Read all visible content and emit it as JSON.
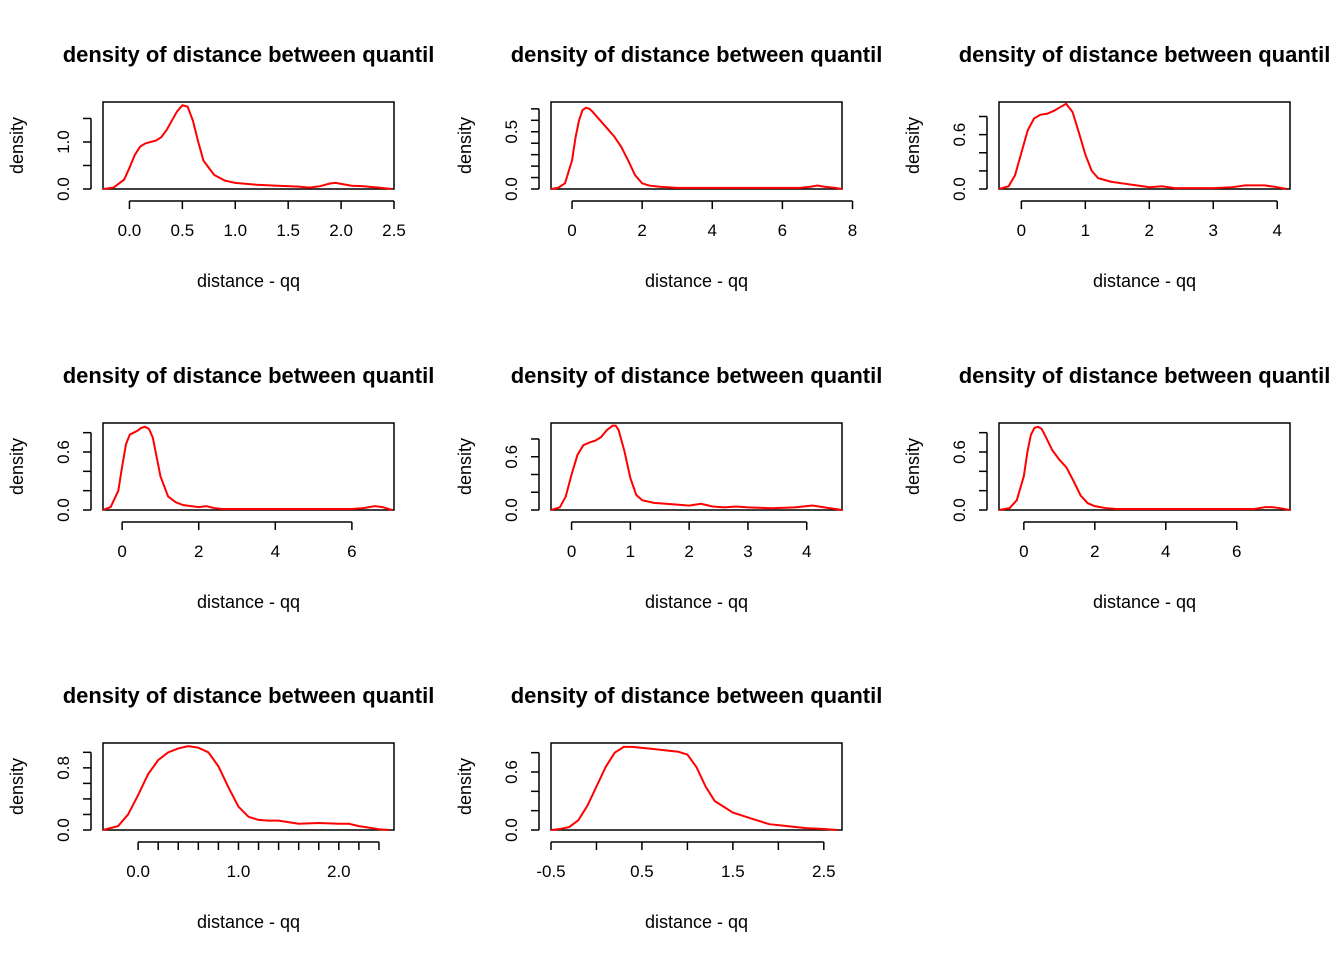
{
  "chart_data": [
    {
      "type": "line",
      "title": "density of distance between quantil",
      "xlabel": "distance - qq",
      "ylabel": "density",
      "xlim": [
        -0.25,
        2.5
      ],
      "ylim": [
        0,
        1.85
      ],
      "xticks": [
        0.0,
        0.5,
        1.0,
        1.5,
        2.0,
        2.5
      ],
      "xtick_labels": [
        "0.0",
        "0.5",
        "1.0",
        "1.5",
        "2.0",
        "2.5"
      ],
      "yticks": [
        0,
        0.5,
        1.0,
        1.5
      ],
      "ytick_labels": [
        "0.0",
        "",
        "1.0",
        ""
      ],
      "grid": false,
      "series": [
        {
          "color": "#ff0000",
          "x": [
            -0.25,
            -0.15,
            -0.05,
            0.0,
            0.05,
            0.1,
            0.15,
            0.2,
            0.25,
            0.3,
            0.35,
            0.4,
            0.45,
            0.5,
            0.55,
            0.6,
            0.65,
            0.7,
            0.8,
            0.9,
            1.0,
            1.2,
            1.4,
            1.6,
            1.7,
            1.8,
            1.9,
            1.95,
            2.0,
            2.1,
            2.2,
            2.3,
            2.4,
            2.48
          ],
          "y": [
            0.0,
            0.03,
            0.2,
            0.45,
            0.72,
            0.9,
            0.97,
            1.0,
            1.03,
            1.1,
            1.25,
            1.45,
            1.65,
            1.78,
            1.75,
            1.45,
            1.0,
            0.6,
            0.3,
            0.18,
            0.13,
            0.09,
            0.07,
            0.05,
            0.03,
            0.06,
            0.12,
            0.13,
            0.11,
            0.07,
            0.06,
            0.04,
            0.02,
            0.0
          ]
        }
      ]
    },
    {
      "type": "line",
      "title": "density of distance between quantil",
      "xlabel": "distance - qq",
      "ylabel": "density",
      "xlim": [
        -0.6,
        7.7
      ],
      "ylim": [
        0,
        0.76
      ],
      "xticks": [
        0,
        2,
        4,
        6,
        8
      ],
      "xtick_labels": [
        "0",
        "2",
        "4",
        "6",
        "8"
      ],
      "yticks": [
        0,
        0.1,
        0.2,
        0.3,
        0.4,
        0.5,
        0.6,
        0.7
      ],
      "ytick_labels": [
        "0.0",
        "",
        "",
        "",
        "",
        "0.5",
        "",
        ""
      ],
      "grid": false,
      "series": [
        {
          "color": "#ff0000",
          "x": [
            -0.6,
            -0.4,
            -0.2,
            0.0,
            0.1,
            0.2,
            0.3,
            0.4,
            0.5,
            0.6,
            0.8,
            1.0,
            1.2,
            1.4,
            1.6,
            1.8,
            2.0,
            2.2,
            2.5,
            3.0,
            4.0,
            5.0,
            6.0,
            6.5,
            6.8,
            7.0,
            7.2,
            7.5,
            7.7
          ],
          "y": [
            0.0,
            0.01,
            0.05,
            0.25,
            0.45,
            0.6,
            0.69,
            0.71,
            0.7,
            0.67,
            0.6,
            0.53,
            0.46,
            0.37,
            0.25,
            0.12,
            0.05,
            0.03,
            0.02,
            0.01,
            0.01,
            0.01,
            0.01,
            0.01,
            0.02,
            0.03,
            0.02,
            0.01,
            0.0
          ]
        }
      ]
    },
    {
      "type": "line",
      "title": "density of distance between quantil",
      "xlabel": "distance - qq",
      "ylabel": "density",
      "xlim": [
        -0.35,
        4.2
      ],
      "ylim": [
        0,
        0.96
      ],
      "xticks": [
        0,
        1,
        2,
        3,
        4
      ],
      "xtick_labels": [
        "0",
        "1",
        "2",
        "3",
        "4"
      ],
      "yticks": [
        0,
        0.2,
        0.4,
        0.6,
        0.8
      ],
      "ytick_labels": [
        "0.0",
        "",
        "",
        "0.6",
        ""
      ],
      "grid": false,
      "series": [
        {
          "color": "#ff0000",
          "x": [
            -0.35,
            -0.2,
            -0.1,
            0.0,
            0.1,
            0.2,
            0.3,
            0.4,
            0.5,
            0.6,
            0.7,
            0.8,
            0.9,
            1.0,
            1.1,
            1.2,
            1.4,
            1.6,
            1.8,
            2.0,
            2.2,
            2.4,
            2.6,
            3.0,
            3.3,
            3.5,
            3.8,
            4.0,
            4.15
          ],
          "y": [
            0.0,
            0.03,
            0.15,
            0.4,
            0.65,
            0.78,
            0.82,
            0.83,
            0.86,
            0.9,
            0.94,
            0.85,
            0.62,
            0.38,
            0.2,
            0.12,
            0.08,
            0.06,
            0.04,
            0.02,
            0.03,
            0.01,
            0.01,
            0.01,
            0.02,
            0.04,
            0.04,
            0.02,
            0.0
          ]
        }
      ]
    },
    {
      "type": "line",
      "title": "density of distance between quantil",
      "xlabel": "distance - qq",
      "ylabel": "density",
      "xlim": [
        -0.5,
        7.1
      ],
      "ylim": [
        0,
        0.9
      ],
      "xticks": [
        0,
        2,
        4,
        6
      ],
      "xtick_labels": [
        "0",
        "2",
        "4",
        "6"
      ],
      "yticks": [
        0,
        0.2,
        0.4,
        0.6,
        0.8
      ],
      "ytick_labels": [
        "0.0",
        "",
        "",
        "0.6",
        ""
      ],
      "grid": false,
      "series": [
        {
          "color": "#ff0000",
          "x": [
            -0.5,
            -0.3,
            -0.1,
            0.0,
            0.1,
            0.2,
            0.3,
            0.4,
            0.5,
            0.6,
            0.7,
            0.8,
            0.9,
            1.0,
            1.2,
            1.4,
            1.6,
            1.8,
            2.0,
            2.2,
            2.4,
            2.6,
            3.0,
            4.0,
            5.0,
            6.0,
            6.3,
            6.6,
            6.8,
            7.05
          ],
          "y": [
            0.0,
            0.03,
            0.2,
            0.45,
            0.68,
            0.78,
            0.8,
            0.82,
            0.85,
            0.86,
            0.84,
            0.75,
            0.55,
            0.35,
            0.14,
            0.08,
            0.05,
            0.04,
            0.03,
            0.04,
            0.02,
            0.01,
            0.01,
            0.01,
            0.01,
            0.01,
            0.02,
            0.04,
            0.03,
            0.0
          ]
        }
      ]
    },
    {
      "type": "line",
      "title": "density of distance between quantil",
      "xlabel": "distance - qq",
      "ylabel": "density",
      "xlim": [
        -0.35,
        4.6
      ],
      "ylim": [
        0,
        0.98
      ],
      "xticks": [
        0,
        1,
        2,
        3,
        4
      ],
      "xtick_labels": [
        "0",
        "1",
        "2",
        "3",
        "4"
      ],
      "yticks": [
        0,
        0.2,
        0.4,
        0.6,
        0.8
      ],
      "ytick_labels": [
        "0.0",
        "",
        "",
        "0.6",
        ""
      ],
      "grid": false,
      "series": [
        {
          "color": "#ff0000",
          "x": [
            -0.35,
            -0.2,
            -0.1,
            0.0,
            0.1,
            0.2,
            0.3,
            0.4,
            0.5,
            0.6,
            0.7,
            0.75,
            0.8,
            0.9,
            1.0,
            1.1,
            1.2,
            1.4,
            1.6,
            1.8,
            2.0,
            2.2,
            2.4,
            2.6,
            2.8,
            3.0,
            3.4,
            3.8,
            4.1,
            4.3,
            4.6
          ],
          "y": [
            0.0,
            0.03,
            0.15,
            0.4,
            0.62,
            0.73,
            0.76,
            0.78,
            0.82,
            0.9,
            0.95,
            0.95,
            0.9,
            0.66,
            0.36,
            0.17,
            0.11,
            0.08,
            0.07,
            0.06,
            0.05,
            0.07,
            0.04,
            0.03,
            0.04,
            0.03,
            0.02,
            0.03,
            0.05,
            0.03,
            0.0
          ]
        }
      ]
    },
    {
      "type": "line",
      "title": "density of distance between quantil",
      "xlabel": "distance - qq",
      "ylabel": "density",
      "xlim": [
        -0.7,
        7.5
      ],
      "ylim": [
        0,
        0.9
      ],
      "xticks": [
        0,
        2,
        4,
        6
      ],
      "xtick_labels": [
        "0",
        "2",
        "4",
        "6"
      ],
      "yticks": [
        0,
        0.2,
        0.4,
        0.6,
        0.8
      ],
      "ytick_labels": [
        "0.0",
        "",
        "",
        "0.6",
        ""
      ],
      "grid": false,
      "series": [
        {
          "color": "#ff0000",
          "x": [
            -0.7,
            -0.4,
            -0.2,
            0.0,
            0.1,
            0.2,
            0.3,
            0.4,
            0.5,
            0.6,
            0.8,
            1.0,
            1.2,
            1.4,
            1.6,
            1.8,
            2.0,
            2.3,
            2.6,
            3.0,
            4.0,
            5.0,
            6.0,
            6.5,
            6.8,
            7.0,
            7.2,
            7.5
          ],
          "y": [
            0.0,
            0.02,
            0.1,
            0.35,
            0.6,
            0.78,
            0.85,
            0.86,
            0.84,
            0.77,
            0.62,
            0.52,
            0.44,
            0.3,
            0.15,
            0.07,
            0.04,
            0.02,
            0.01,
            0.01,
            0.01,
            0.01,
            0.01,
            0.01,
            0.03,
            0.03,
            0.02,
            0.0
          ]
        }
      ]
    },
    {
      "type": "line",
      "title": "density of distance between quantil",
      "xlabel": "distance - qq",
      "ylabel": "density",
      "xlim": [
        -0.35,
        2.55
      ],
      "ylim": [
        0,
        1.12
      ],
      "xticks": [
        0.0,
        0.2,
        0.4,
        0.6,
        0.8,
        1.0,
        1.2,
        1.4,
        1.6,
        1.8,
        2.0,
        2.2,
        2.4
      ],
      "xtick_labels": [
        "0.0",
        "",
        "",
        "",
        "",
        "1.0",
        "",
        "",
        "",
        "",
        "2.0",
        "",
        ""
      ],
      "yticks": [
        0,
        0.2,
        0.4,
        0.6,
        0.8,
        1.0
      ],
      "ytick_labels": [
        "0.0",
        "",
        "",
        "",
        "0.8",
        ""
      ],
      "grid": false,
      "series": [
        {
          "color": "#ff0000",
          "x": [
            -0.35,
            -0.2,
            -0.1,
            0.0,
            0.1,
            0.2,
            0.3,
            0.4,
            0.5,
            0.6,
            0.7,
            0.8,
            0.9,
            1.0,
            1.1,
            1.2,
            1.3,
            1.4,
            1.6,
            1.8,
            2.0,
            2.1,
            2.2,
            2.3,
            2.4,
            2.5
          ],
          "y": [
            0.0,
            0.05,
            0.2,
            0.45,
            0.72,
            0.9,
            1.0,
            1.05,
            1.08,
            1.06,
            1.0,
            0.82,
            0.55,
            0.3,
            0.17,
            0.13,
            0.12,
            0.12,
            0.08,
            0.09,
            0.08,
            0.08,
            0.05,
            0.03,
            0.01,
            0.0
          ]
        }
      ]
    },
    {
      "type": "line",
      "title": "density of distance between quantil",
      "xlabel": "distance - qq",
      "ylabel": "density",
      "xlim": [
        -0.5,
        2.7
      ],
      "ylim": [
        0,
        0.9
      ],
      "xticks": [
        -0.5,
        0.0,
        0.5,
        1.0,
        1.5,
        2.0,
        2.5
      ],
      "xtick_labels": [
        "-0.5",
        "",
        "0.5",
        "",
        "1.5",
        "",
        "2.5"
      ],
      "yticks": [
        0,
        0.2,
        0.4,
        0.6,
        0.8
      ],
      "ytick_labels": [
        "0.0",
        "",
        "",
        "0.6",
        ""
      ],
      "grid": false,
      "series": [
        {
          "color": "#ff0000",
          "x": [
            -0.5,
            -0.4,
            -0.3,
            -0.2,
            -0.1,
            0.0,
            0.1,
            0.2,
            0.3,
            0.4,
            0.5,
            0.6,
            0.7,
            0.8,
            0.9,
            1.0,
            1.1,
            1.2,
            1.3,
            1.5,
            1.7,
            1.9,
            2.1,
            2.3,
            2.5,
            2.65
          ],
          "y": [
            0.0,
            0.01,
            0.03,
            0.1,
            0.25,
            0.45,
            0.65,
            0.8,
            0.86,
            0.86,
            0.85,
            0.84,
            0.83,
            0.82,
            0.81,
            0.78,
            0.65,
            0.45,
            0.3,
            0.18,
            0.12,
            0.06,
            0.04,
            0.02,
            0.01,
            0.0
          ]
        }
      ]
    }
  ]
}
